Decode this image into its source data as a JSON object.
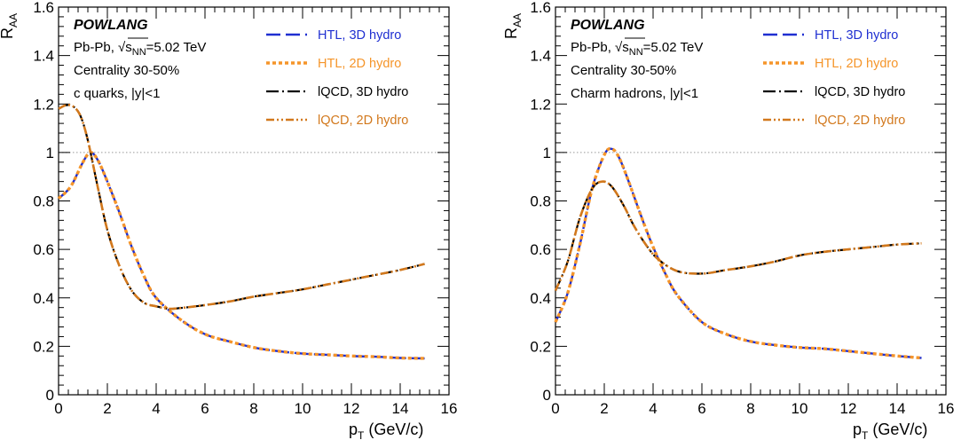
{
  "charts": [
    {
      "brand": "POWLANG",
      "info_lines": [
        "Pb-Pb, √s",
        "NN",
        "=5.02 TeV",
        "Centrality 30-50%",
        "c quarks, |y|<1"
      ],
      "ylabel_main": "R",
      "ylabel_sub": "AA",
      "xlabel_main": "p",
      "xlabel_sub": "T",
      "xlabel_unit": " (GeV/c)"
    },
    {
      "brand": "POWLANG",
      "info_lines": [
        "Pb-Pb, √s",
        "NN",
        "=5.02 TeV",
        "Centrality 30-50%",
        "Charm hadrons, |y|<1"
      ],
      "ylabel_main": "R",
      "ylabel_sub": "AA",
      "xlabel_main": "p",
      "xlabel_sub": "T",
      "xlabel_unit": " (GeV/c)"
    }
  ],
  "chart_data": [
    {
      "type": "line",
      "xlabel": "p_T (GeV/c)",
      "ylabel": "R_AA",
      "xlim": [
        0,
        16
      ],
      "ylim": [
        0,
        1.6
      ],
      "x_ticks": [
        "0",
        "2",
        "4",
        "6",
        "8",
        "10",
        "12",
        "14",
        "16"
      ],
      "y_ticks": [
        "0",
        "0.2",
        "0.4",
        "0.6",
        "0.8",
        "1",
        "1.2",
        "1.4",
        "1.6"
      ],
      "reference_line": 1.0,
      "legend_position": "top-right",
      "series": [
        {
          "name": "HTL, 3D hydro",
          "color": "#1f2fd1",
          "style": "dashed",
          "x": [
            0,
            0.5,
            1.0,
            1.3,
            1.6,
            2,
            2.5,
            3,
            3.5,
            4,
            5,
            6,
            7,
            8,
            9,
            10,
            11,
            12,
            13,
            14,
            15
          ],
          "y": [
            0.81,
            0.86,
            0.96,
            1.0,
            0.97,
            0.88,
            0.75,
            0.61,
            0.49,
            0.4,
            0.31,
            0.25,
            0.22,
            0.195,
            0.18,
            0.17,
            0.165,
            0.16,
            0.157,
            0.152,
            0.15
          ]
        },
        {
          "name": "HTL, 2D hydro",
          "color": "#f5952a",
          "style": "dotted",
          "x": [
            0,
            0.5,
            1.0,
            1.3,
            1.6,
            2,
            2.5,
            3,
            3.5,
            4,
            5,
            6,
            7,
            8,
            9,
            10,
            11,
            12,
            13,
            14,
            15
          ],
          "y": [
            0.81,
            0.86,
            0.96,
            1.0,
            0.97,
            0.88,
            0.75,
            0.61,
            0.49,
            0.4,
            0.31,
            0.25,
            0.22,
            0.195,
            0.18,
            0.17,
            0.165,
            0.16,
            0.157,
            0.152,
            0.15
          ]
        },
        {
          "name": "lQCD, 3D hydro",
          "color": "#000000",
          "style": "dashdot",
          "x": [
            0,
            0.3,
            0.6,
            0.9,
            1.2,
            1.6,
            2,
            2.5,
            3,
            3.5,
            4,
            4.5,
            5,
            6,
            7,
            8,
            9,
            10,
            11,
            12,
            13,
            14,
            15
          ],
          "y": [
            1.18,
            1.195,
            1.19,
            1.15,
            1.05,
            0.86,
            0.68,
            0.53,
            0.43,
            0.38,
            0.365,
            0.355,
            0.358,
            0.37,
            0.385,
            0.405,
            0.42,
            0.435,
            0.455,
            0.475,
            0.495,
            0.515,
            0.54
          ]
        },
        {
          "name": "lQCD, 2D hydro",
          "color": "#d2781c",
          "style": "dashdotdot",
          "x": [
            0,
            0.3,
            0.6,
            0.9,
            1.2,
            1.6,
            2,
            2.5,
            3,
            3.5,
            4,
            4.5,
            5,
            6,
            7,
            8,
            9,
            10,
            11,
            12,
            13,
            14,
            15
          ],
          "y": [
            1.18,
            1.195,
            1.19,
            1.15,
            1.05,
            0.86,
            0.68,
            0.53,
            0.43,
            0.38,
            0.365,
            0.355,
            0.358,
            0.37,
            0.385,
            0.405,
            0.42,
            0.435,
            0.455,
            0.475,
            0.495,
            0.515,
            0.54
          ]
        }
      ]
    },
    {
      "type": "line",
      "xlabel": "p_T (GeV/c)",
      "ylabel": "R_AA",
      "xlim": [
        0,
        16
      ],
      "ylim": [
        0,
        1.6
      ],
      "x_ticks": [
        "0",
        "2",
        "4",
        "6",
        "8",
        "10",
        "12",
        "14",
        "16"
      ],
      "y_ticks": [
        "0",
        "0.2",
        "0.4",
        "0.6",
        "0.8",
        "1",
        "1.2",
        "1.4",
        "1.6"
      ],
      "reference_line": 1.0,
      "legend_position": "top-right",
      "series": [
        {
          "name": "HTL, 3D hydro",
          "color": "#1f2fd1",
          "style": "dashed",
          "x": [
            0,
            0.5,
            1.0,
            1.5,
            2.0,
            2.3,
            2.6,
            3.0,
            3.5,
            4,
            4.5,
            5,
            6,
            7,
            8,
            9,
            10,
            11,
            12,
            13,
            14,
            15
          ],
          "y": [
            0.3,
            0.42,
            0.62,
            0.85,
            0.99,
            1.015,
            0.98,
            0.88,
            0.74,
            0.61,
            0.5,
            0.41,
            0.3,
            0.25,
            0.22,
            0.205,
            0.195,
            0.19,
            0.18,
            0.17,
            0.16,
            0.152
          ]
        },
        {
          "name": "HTL, 2D hydro",
          "color": "#f5952a",
          "style": "dotted",
          "x": [
            0,
            0.5,
            1.0,
            1.5,
            2.0,
            2.3,
            2.6,
            3.0,
            3.5,
            4,
            4.5,
            5,
            6,
            7,
            8,
            9,
            10,
            11,
            12,
            13,
            14,
            15
          ],
          "y": [
            0.3,
            0.42,
            0.62,
            0.85,
            0.99,
            1.015,
            0.98,
            0.88,
            0.74,
            0.61,
            0.5,
            0.41,
            0.3,
            0.25,
            0.22,
            0.205,
            0.195,
            0.19,
            0.18,
            0.17,
            0.16,
            0.152
          ]
        },
        {
          "name": "lQCD, 3D hydro",
          "color": "#000000",
          "style": "dashdot",
          "x": [
            0,
            0.5,
            1.0,
            1.5,
            1.9,
            2.3,
            2.8,
            3.2,
            3.7,
            4.2,
            5,
            6,
            7,
            8,
            9,
            10,
            11,
            12,
            13,
            14,
            15
          ],
          "y": [
            0.43,
            0.55,
            0.73,
            0.85,
            0.88,
            0.86,
            0.78,
            0.7,
            0.62,
            0.56,
            0.51,
            0.5,
            0.515,
            0.53,
            0.55,
            0.575,
            0.59,
            0.6,
            0.61,
            0.62,
            0.625
          ]
        },
        {
          "name": "lQCD, 2D hydro",
          "color": "#d2781c",
          "style": "dashdotdot",
          "x": [
            0,
            0.5,
            1.0,
            1.5,
            1.9,
            2.3,
            2.8,
            3.2,
            3.7,
            4.2,
            5,
            6,
            7,
            8,
            9,
            10,
            11,
            12,
            13,
            14,
            15
          ],
          "y": [
            0.43,
            0.55,
            0.73,
            0.85,
            0.88,
            0.86,
            0.78,
            0.7,
            0.62,
            0.56,
            0.51,
            0.5,
            0.515,
            0.53,
            0.55,
            0.575,
            0.59,
            0.6,
            0.61,
            0.62,
            0.625
          ]
        }
      ]
    }
  ]
}
